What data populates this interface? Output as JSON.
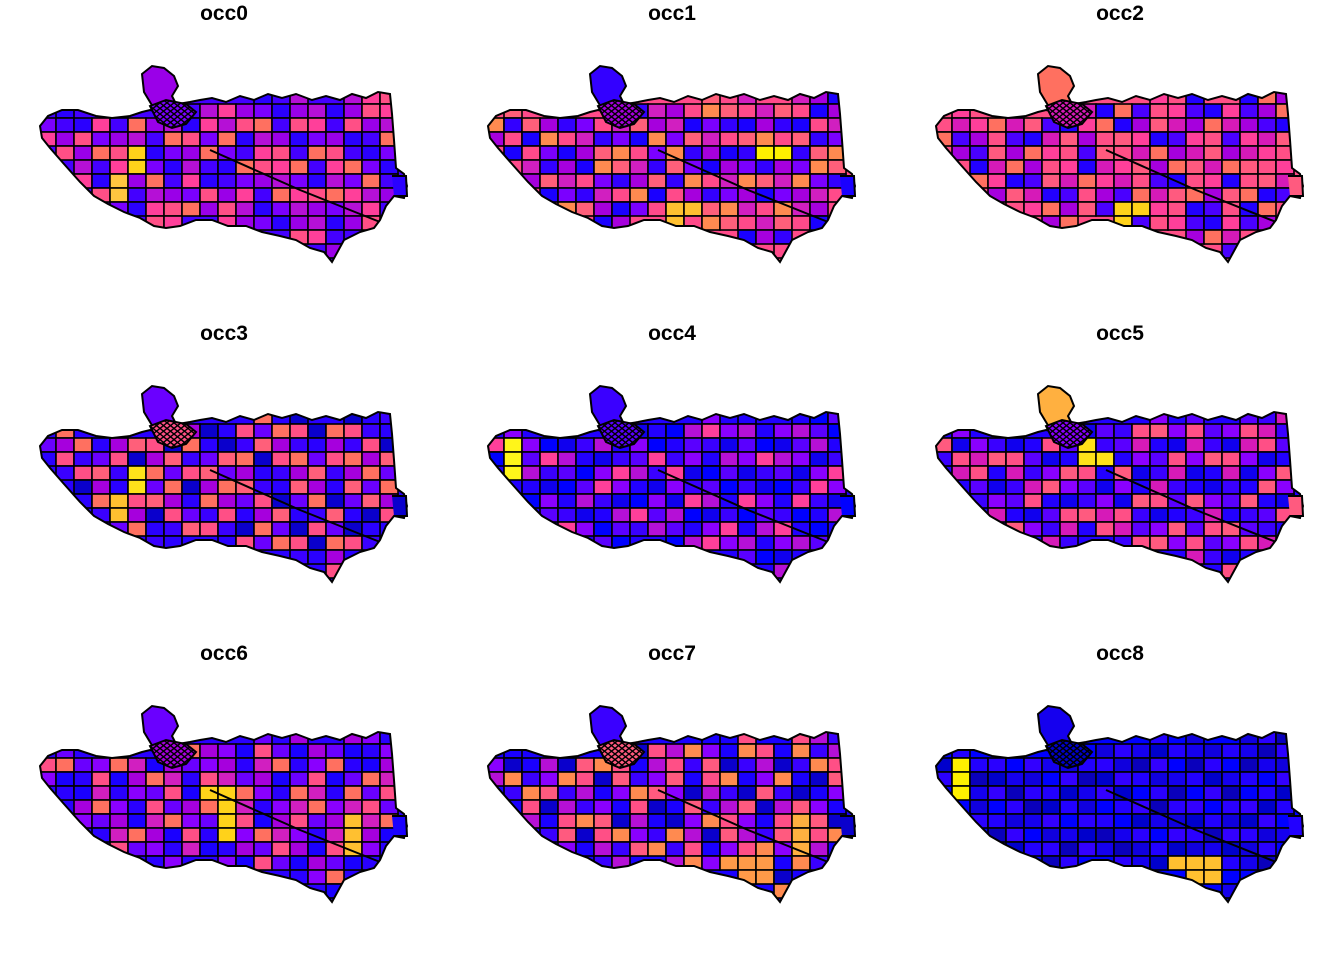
{
  "figure": {
    "panels": [
      {
        "title": "occ0",
        "palette": [
          "#4400ff",
          "#9a00e8",
          "#7a00ff",
          "#ff3f9a",
          "#b510d6",
          "#ff7060",
          "#ff4f86",
          "#2a00ff"
        ],
        "highlights": [
          {
            "region": "west-mid",
            "color": "#ffd21a"
          },
          {
            "region": "west-south",
            "color": "#ffc640"
          }
        ]
      },
      {
        "title": "occ1",
        "palette": [
          "#ff4a8a",
          "#3300ff",
          "#a600dd",
          "#ff8a50",
          "#7b00ff",
          "#d11fc0",
          "#ff5f7a",
          "#1a00ff"
        ],
        "highlights": [
          {
            "region": "east-mid",
            "color": "#fff000"
          },
          {
            "region": "center-south",
            "color": "#ffc030"
          }
        ]
      },
      {
        "title": "occ2",
        "palette": [
          "#ff4f86",
          "#ff7060",
          "#d61ab8",
          "#4a00ff",
          "#a600dd",
          "#ff3f9a",
          "#2200ff",
          "#ff5a7f"
        ],
        "highlights": [
          {
            "region": "center-south",
            "color": "#ffd21a"
          }
        ]
      },
      {
        "title": "occ3",
        "palette": [
          "#2a00ff",
          "#6a00ff",
          "#ff4f86",
          "#a600dd",
          "#ff7060",
          "#3a00ff",
          "#ff5f7a",
          "#0a00cc"
        ],
        "highlights": [
          {
            "region": "west-mid",
            "color": "#ffe21a"
          },
          {
            "region": "west-south",
            "color": "#ffc030"
          }
        ]
      },
      {
        "title": "occ4",
        "palette": [
          "#2200ff",
          "#3a00ff",
          "#5a00ff",
          "#8a00ff",
          "#1000ee",
          "#b510d6",
          "#ff3f9a",
          "#0000ff"
        ],
        "highlights": [
          {
            "region": "far-west",
            "color": "#fff51a"
          }
        ]
      },
      {
        "title": "occ5",
        "palette": [
          "#2200ff",
          "#5a00ff",
          "#8a00ff",
          "#d61ab8",
          "#ff4f86",
          "#1000ee",
          "#3a00ff",
          "#ff5a7f"
        ],
        "highlights": [
          {
            "region": "park",
            "color": "#ffb040"
          },
          {
            "region": "center-north",
            "color": "#ffe21a"
          }
        ]
      },
      {
        "title": "occ6",
        "palette": [
          "#2a00ff",
          "#6a00ff",
          "#a600dd",
          "#d11fc0",
          "#ff4f86",
          "#8a00ff",
          "#ff7060",
          "#1a00ff"
        ],
        "highlights": [
          {
            "region": "center-mid",
            "color": "#ffd21a"
          },
          {
            "region": "east-south",
            "color": "#ffc030"
          }
        ]
      },
      {
        "title": "occ7",
        "palette": [
          "#1a00ff",
          "#3a00ff",
          "#ff5a7f",
          "#ff4f86",
          "#b510d6",
          "#8a00ff",
          "#ff8a50",
          "#0a00cc"
        ],
        "highlights": [
          {
            "region": "south-coast",
            "color": "#ff9a48"
          },
          {
            "region": "east-south",
            "color": "#ffb040"
          }
        ]
      },
      {
        "title": "occ8",
        "palette": [
          "#0000ff",
          "#1500ee",
          "#0000cc",
          "#2a00ff",
          "#1000dd",
          "#3300ff",
          "#0a00bb",
          "#2200ff"
        ],
        "highlights": [
          {
            "region": "south-coast",
            "color": "#ffc030"
          },
          {
            "region": "far-west",
            "color": "#fff000"
          }
        ]
      }
    ]
  }
}
